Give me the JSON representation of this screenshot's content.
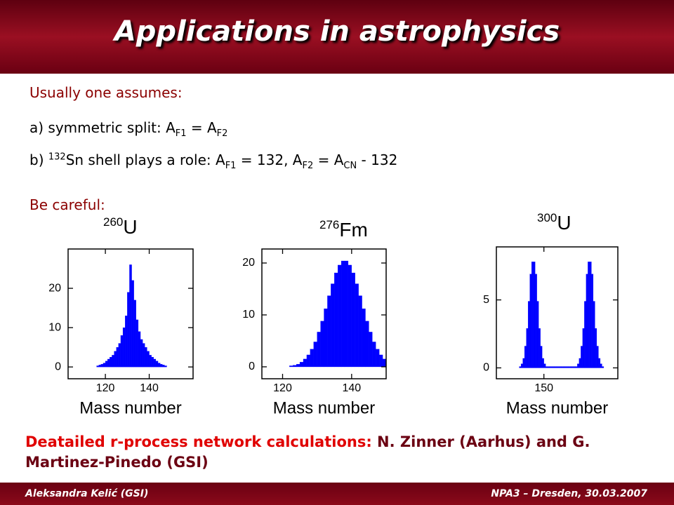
{
  "slide": {
    "title": "Applications in astrophysics",
    "intro": "Usually one assumes:",
    "line_a": [
      "a) symmetric split: A",
      "F1",
      " = A",
      "F2"
    ],
    "line_b": [
      "b) ",
      "132",
      "Sn shell plays a role: A",
      "F1",
      " = 132, A",
      "F2",
      " = A",
      "CN",
      " - 132"
    ],
    "careful": "Be careful:",
    "note_lead": "Deatailed r-process network calculations:",
    "note_rest": " N. Zinner (Aarhus) and G. Martinez-Pinedo (GSI)",
    "footer_left": "Aleksandra Kelić (GSI)",
    "footer_right": "NPA3 – Dresden, 30.03.2007"
  },
  "chart_data": [
    {
      "type": "histogram",
      "isotope_mass": "260",
      "element": "U",
      "x_label": "Mass number",
      "color": "#0000ff",
      "bins": [
        116,
        117,
        118,
        119,
        120,
        121,
        122,
        123,
        124,
        125,
        126,
        127,
        128,
        129,
        130,
        131,
        132,
        133,
        134,
        135,
        136,
        137,
        138,
        139,
        140,
        141,
        142,
        143,
        144,
        145,
        146,
        147,
        148
      ],
      "counts": [
        0.3,
        0.5,
        0.7,
        1,
        1.5,
        2,
        2.5,
        3,
        4,
        5,
        6,
        8,
        10,
        13,
        19,
        26,
        22,
        17,
        12,
        9,
        7,
        6,
        5,
        4,
        3,
        2.5,
        2,
        1.5,
        1,
        0.7,
        0.5,
        0.3
      ],
      "xlim": [
        103,
        160
      ],
      "xticks": [
        120,
        140
      ],
      "ylim": [
        -3,
        30
      ],
      "yticks": [
        0,
        10,
        20
      ]
    },
    {
      "type": "histogram",
      "isotope_mass": "276",
      "element": "Fm",
      "x_label": "Mass number",
      "color": "#0000ff",
      "bins": [
        122,
        123,
        124,
        125,
        126,
        127,
        128,
        129,
        130,
        131,
        132,
        133,
        134,
        135,
        136,
        137,
        138,
        139,
        140,
        141,
        142,
        143,
        144,
        145,
        146,
        147,
        148,
        149,
        150
      ],
      "counts": [
        0.2,
        0.3,
        0.5,
        0.9,
        1.5,
        2.3,
        3.4,
        4.8,
        6.7,
        8.8,
        11.2,
        13.7,
        16,
        18.1,
        19.6,
        20.4,
        20.4,
        19.6,
        18.1,
        16,
        13.7,
        11.2,
        8.8,
        6.7,
        4.8,
        3.4,
        2.3,
        1.5
      ],
      "xlim": [
        114,
        150
      ],
      "xticks": [
        120,
        140
      ],
      "ylim": [
        -2.3,
        22.7
      ],
      "yticks": [
        0,
        10,
        20
      ]
    },
    {
      "type": "histogram",
      "isotope_mass": "300",
      "element": "U",
      "x_label": "Mass number",
      "color": "#0000ff",
      "bins": [
        136,
        137,
        138,
        139,
        140,
        141,
        142,
        143,
        144,
        145,
        146,
        147,
        148,
        149,
        150,
        151,
        152,
        153,
        154,
        155,
        156,
        157,
        158,
        159,
        160,
        161,
        162,
        163,
        164,
        165,
        166,
        167,
        168,
        169,
        170,
        171,
        172,
        173,
        174,
        175,
        176,
        177,
        178,
        179,
        180,
        181,
        182,
        183,
        184
      ],
      "counts": [
        0.1,
        0.3,
        0.7,
        1.6,
        2.9,
        4.9,
        6.9,
        7.8,
        7.8,
        6.9,
        4.9,
        2.9,
        1.6,
        0.7,
        0.3,
        0.1,
        0.1,
        0.1,
        0.1,
        0.1,
        0.1,
        0.1,
        0.1,
        0.1,
        0.1,
        0.1,
        0.1,
        0.1,
        0.1,
        0.1,
        0.1,
        0.1,
        0.1,
        0.3,
        0.7,
        1.6,
        2.9,
        4.9,
        6.9,
        7.8,
        7.8,
        6.9,
        4.9,
        2.9,
        1.6,
        0.7,
        0.3,
        0.1
      ],
      "xlim": [
        123,
        192
      ],
      "xticks": [
        150
      ],
      "ylim": [
        -0.8,
        8.9
      ],
      "yticks": [
        0,
        5
      ]
    }
  ]
}
